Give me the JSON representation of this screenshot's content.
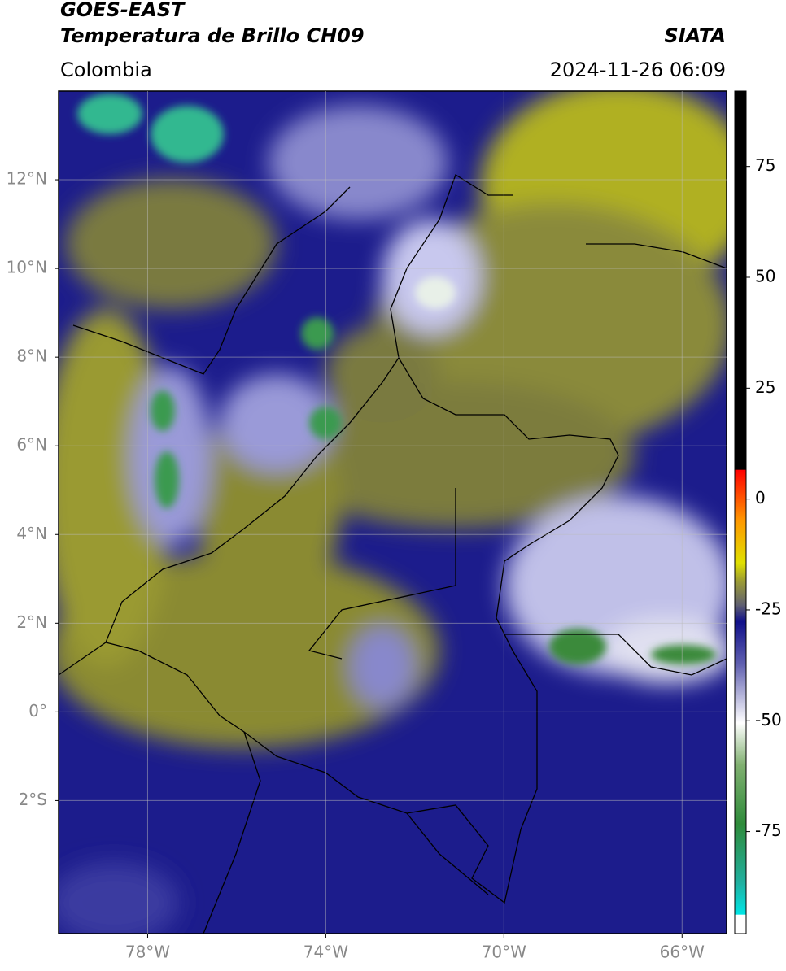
{
  "header": {
    "title_line1": "GOES-EAST",
    "title_line2": "Temperatura de Brillo CH09",
    "region": "Colombia",
    "source": "SIATA",
    "timestamp": "2024-11-26 06:09"
  },
  "map": {
    "xlim": [
      -80,
      -65
    ],
    "ylim": [
      -5,
      14
    ],
    "xticks": [
      {
        "value": -78,
        "label": "78°W"
      },
      {
        "value": -74,
        "label": "74°W"
      },
      {
        "value": -70,
        "label": "70°W"
      },
      {
        "value": -66,
        "label": "66°W"
      }
    ],
    "yticks": [
      {
        "value": 12,
        "label": "12°N"
      },
      {
        "value": 10,
        "label": "10°N"
      },
      {
        "value": 8,
        "label": "8°N"
      },
      {
        "value": 6,
        "label": "6°N"
      },
      {
        "value": 4,
        "label": "4°N"
      },
      {
        "value": 2,
        "label": "2°N"
      },
      {
        "value": 0,
        "label": "0°"
      },
      {
        "value": -2,
        "label": "2°S"
      }
    ],
    "grid": true
  },
  "colorbar": {
    "clim": [
      -98,
      92
    ],
    "ticks": [
      75,
      50,
      25,
      0,
      -25,
      -50,
      -75
    ]
  }
}
